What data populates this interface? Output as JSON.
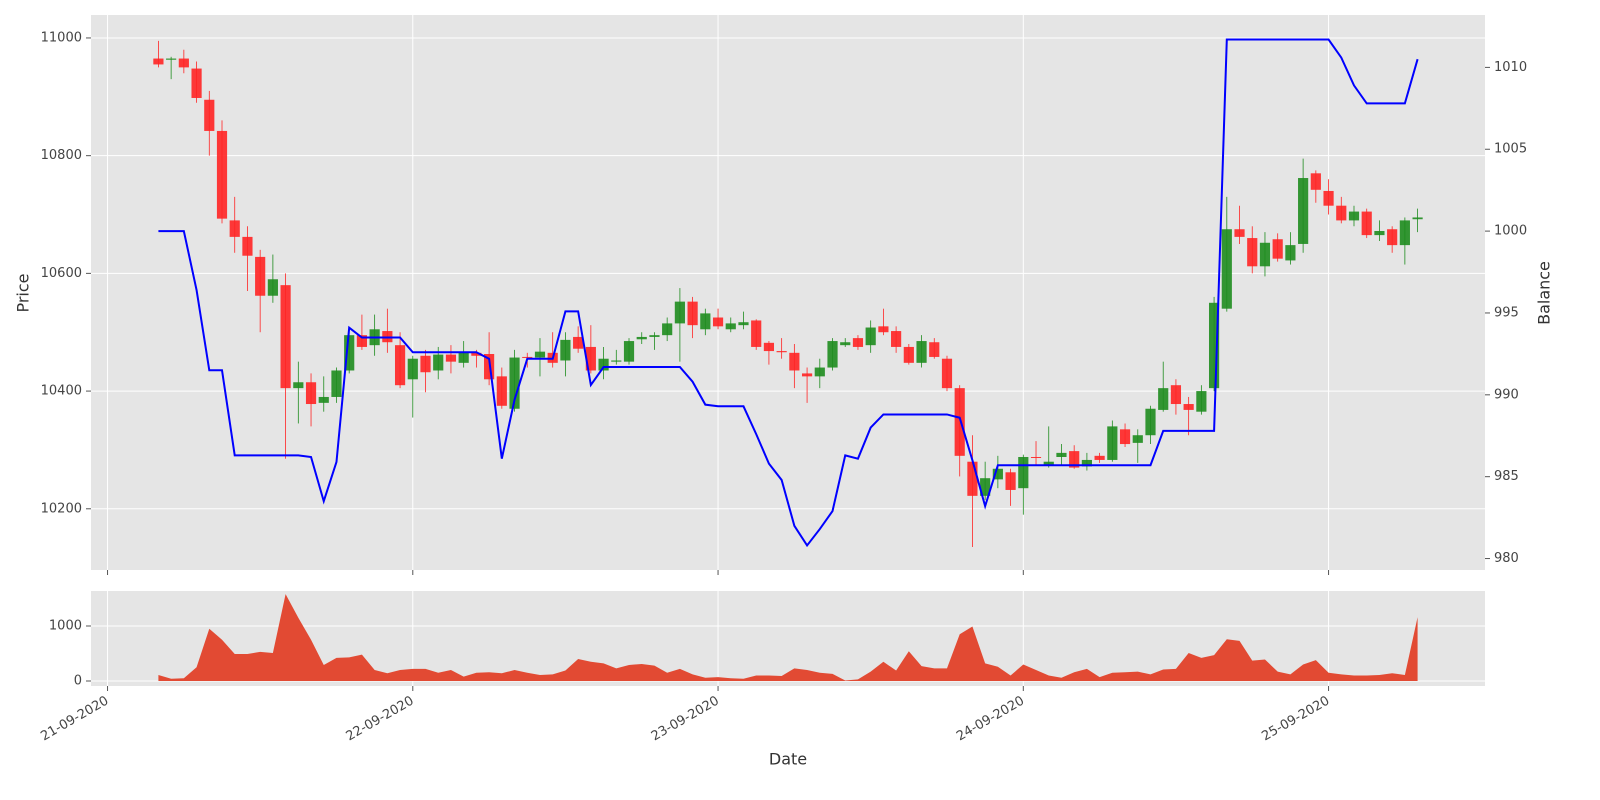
{
  "chart_data": [
    {
      "type": "candlestick",
      "ylabel": "Price",
      "y2label": "Balance",
      "x": [
        4,
        5,
        6,
        7,
        8,
        9,
        10,
        11,
        12,
        13,
        14,
        15,
        16,
        17,
        18,
        19,
        20,
        21,
        22,
        23,
        24,
        25,
        26,
        27,
        28,
        29,
        30,
        31,
        32,
        33,
        34,
        35,
        36,
        37,
        38,
        39,
        40,
        41,
        42,
        43,
        44,
        45,
        46,
        47,
        48,
        49,
        50,
        51,
        52,
        53,
        54,
        55,
        56,
        57,
        58,
        59,
        60,
        61,
        62,
        63,
        64,
        65,
        66,
        67,
        68,
        69,
        70,
        71,
        72,
        73,
        74,
        75,
        76,
        77,
        78,
        79,
        80,
        81,
        82,
        83,
        84,
        85,
        86,
        87,
        88,
        89,
        90,
        91,
        92,
        93,
        94,
        95,
        96,
        97,
        98,
        99,
        100,
        101,
        102,
        103
      ],
      "open": [
        10965,
        10963,
        10965,
        10948,
        10895,
        10842,
        10690,
        10662,
        10628,
        10562,
        10580,
        10405,
        10415,
        10380,
        10390,
        10435,
        10495,
        10478,
        10502,
        10478,
        10420,
        10460,
        10435,
        10462,
        10448,
        10465,
        10463,
        10425,
        10370,
        10458,
        10457,
        10465,
        10452,
        10492,
        10475,
        10435,
        10450,
        10450,
        10488,
        10492,
        10495,
        10515,
        10552,
        10505,
        10525,
        10505,
        10512,
        10520,
        10482,
        10468,
        10465,
        10430,
        10425,
        10440,
        10478,
        10490,
        10478,
        10510,
        10502,
        10475,
        10448,
        10483,
        10455,
        10405,
        10280,
        10222,
        10250,
        10262,
        10235,
        10288,
        10275,
        10288,
        10298,
        10272,
        10290,
        10283,
        10335,
        10312,
        10325,
        10368,
        10410,
        10378,
        10365,
        10405,
        10540,
        10675,
        10660,
        10612,
        10658,
        10622,
        10650,
        10770,
        10740,
        10715,
        10690,
        10705,
        10665,
        10675,
        10648,
        10692
      ],
      "high": [
        10995,
        10968,
        10980,
        10960,
        10910,
        10860,
        10730,
        10680,
        10640,
        10632,
        10600,
        10450,
        10430,
        10425,
        10440,
        10500,
        10530,
        10530,
        10540,
        10500,
        10460,
        10470,
        10475,
        10478,
        10485,
        10470,
        10500,
        10440,
        10470,
        10465,
        10490,
        10500,
        10500,
        10510,
        10512,
        10475,
        10470,
        10490,
        10500,
        10500,
        10525,
        10575,
        10560,
        10540,
        10540,
        10525,
        10535,
        10522,
        10485,
        10490,
        10480,
        10440,
        10455,
        10490,
        10490,
        10495,
        10520,
        10540,
        10510,
        10480,
        10495,
        10490,
        10460,
        10410,
        10325,
        10280,
        10290,
        10268,
        10292,
        10315,
        10340,
        10310,
        10308,
        10295,
        10295,
        10350,
        10345,
        10335,
        10375,
        10450,
        10420,
        10390,
        10410,
        10560,
        10730,
        10715,
        10680,
        10670,
        10668,
        10670,
        10795,
        10775,
        10760,
        10730,
        10715,
        10710,
        10690,
        10680,
        10695,
        10710
      ],
      "low": [
        10950,
        10930,
        10940,
        10890,
        10800,
        10685,
        10635,
        10570,
        10500,
        10550,
        10285,
        10345,
        10340,
        10365,
        10380,
        10430,
        10470,
        10460,
        10465,
        10405,
        10355,
        10398,
        10420,
        10430,
        10440,
        10440,
        10410,
        10370,
        10365,
        10440,
        10425,
        10440,
        10425,
        10465,
        10430,
        10420,
        10445,
        10445,
        10480,
        10470,
        10485,
        10450,
        10490,
        10495,
        10505,
        10500,
        10505,
        10470,
        10445,
        10455,
        10405,
        10380,
        10405,
        10435,
        10475,
        10470,
        10465,
        10495,
        10465,
        10445,
        10440,
        10455,
        10400,
        10255,
        10135,
        10215,
        10235,
        10205,
        10190,
        10275,
        10270,
        10275,
        10268,
        10265,
        10278,
        10280,
        10305,
        10278,
        10310,
        10365,
        10360,
        10325,
        10360,
        10400,
        10535,
        10650,
        10600,
        10595,
        10620,
        10615,
        10635,
        10720,
        10700,
        10685,
        10680,
        10660,
        10655,
        10635,
        10615,
        10670
      ],
      "close": [
        10955,
        10965,
        10950,
        10898,
        10842,
        10693,
        10662,
        10630,
        10562,
        10590,
        10405,
        10415,
        10378,
        10390,
        10435,
        10495,
        10475,
        10505,
        10483,
        10410,
        10455,
        10432,
        10462,
        10450,
        10465,
        10460,
        10420,
        10375,
        10457,
        10457,
        10467,
        10448,
        10487,
        10472,
        10435,
        10455,
        10452,
        10485,
        10492,
        10495,
        10515,
        10552,
        10512,
        10532,
        10510,
        10515,
        10517,
        10475,
        10468,
        10466,
        10435,
        10425,
        10440,
        10485,
        10483,
        10475,
        10508,
        10500,
        10475,
        10448,
        10485,
        10458,
        10405,
        10290,
        10222,
        10252,
        10268,
        10232,
        10288,
        10287,
        10280,
        10295,
        10270,
        10283,
        10283,
        10340,
        10310,
        10325,
        10370,
        10405,
        10378,
        10368,
        10400,
        10550,
        10675,
        10662,
        10612,
        10652,
        10625,
        10648,
        10762,
        10742,
        10715,
        10690,
        10705,
        10665,
        10672,
        10648,
        10690,
        10695
      ],
      "up_color": "#1e8c1e",
      "down_color": "#ff2424",
      "series": [
        {
          "axis": "y2",
          "color": "#0000ff",
          "values": [
            1000,
            1000,
            1000,
            996.4,
            991.5,
            991.5,
            986.3,
            986.3,
            986.3,
            986.3,
            986.3,
            986.3,
            986.2,
            983.5,
            985.9,
            994.1,
            993.5,
            993.5,
            993.5,
            993.5,
            992.6,
            992.6,
            992.6,
            992.6,
            992.6,
            992.6,
            992.2,
            986.1,
            989.7,
            992.2,
            992.2,
            992.2,
            995.1,
            995.1,
            990.6,
            991.7,
            991.7,
            991.7,
            991.7,
            991.7,
            991.7,
            991.7,
            990.8,
            989.4,
            989.3,
            989.3,
            989.3,
            987.6,
            985.8,
            984.8,
            982.0,
            980.8,
            981.8,
            982.9,
            986.3,
            986.1,
            988.0,
            988.8,
            988.8,
            988.8,
            988.8,
            988.8,
            988.8,
            988.6,
            986.0,
            983.2,
            985.7,
            985.7,
            985.7,
            985.7,
            985.7,
            985.7,
            985.7,
            985.7,
            985.7,
            985.7,
            985.7,
            985.7,
            985.7,
            987.8,
            987.8,
            987.8,
            987.8,
            987.8,
            1011.7,
            1011.7,
            1011.7,
            1011.7,
            1011.7,
            1011.7,
            1011.7,
            1011.7,
            1011.7,
            1010.6,
            1008.9,
            1007.8,
            1007.8,
            1007.8,
            1007.8,
            1010.5
          ]
        }
      ],
      "xlim": [
        -1.3,
        108.3
      ],
      "xticks": [
        0,
        24,
        48,
        72,
        96
      ],
      "ylim": [
        10096,
        11039
      ],
      "yticks": [
        10200,
        10400,
        10600,
        10800,
        11000
      ],
      "y2lim": [
        979.3,
        1013.2
      ],
      "y2ticks": [
        980,
        985,
        990,
        995,
        1000,
        1005,
        1010
      ],
      "grid": true
    },
    {
      "type": "area",
      "xlabel": "Date",
      "color": "#e24a33",
      "x": [
        4,
        5,
        6,
        7,
        8,
        9,
        10,
        11,
        12,
        13,
        14,
        15,
        16,
        17,
        18,
        19,
        20,
        21,
        22,
        23,
        24,
        25,
        26,
        27,
        28,
        29,
        30,
        31,
        32,
        33,
        34,
        35,
        36,
        37,
        38,
        39,
        40,
        41,
        42,
        43,
        44,
        45,
        46,
        47,
        48,
        49,
        50,
        51,
        52,
        53,
        54,
        55,
        56,
        57,
        58,
        59,
        60,
        61,
        62,
        63,
        64,
        65,
        66,
        67,
        68,
        69,
        70,
        71,
        72,
        73,
        74,
        75,
        76,
        77,
        78,
        79,
        80,
        81,
        82,
        83,
        84,
        85,
        86,
        87,
        88,
        89,
        90,
        91,
        92,
        93,
        94,
        95,
        96,
        97,
        98,
        99,
        100,
        101,
        102,
        103
      ],
      "values": [
        110,
        40,
        50,
        250,
        950,
        750,
        490,
        490,
        530,
        510,
        1580,
        1150,
        750,
        290,
        420,
        430,
        480,
        200,
        140,
        200,
        220,
        220,
        150,
        200,
        80,
        150,
        160,
        140,
        200,
        150,
        110,
        120,
        190,
        400,
        350,
        320,
        230,
        290,
        310,
        280,
        150,
        220,
        120,
        60,
        70,
        50,
        40,
        100,
        100,
        90,
        230,
        200,
        150,
        130,
        10,
        30,
        170,
        350,
        190,
        540,
        270,
        230,
        230,
        850,
        990,
        320,
        260,
        100,
        300,
        200,
        100,
        60,
        160,
        220,
        70,
        150,
        160,
        170,
        120,
        210,
        220,
        510,
        420,
        470,
        760,
        730,
        370,
        390,
        170,
        120,
        300,
        380,
        150,
        120,
        100,
        100,
        110,
        140,
        110,
        1160
      ],
      "xlim": [
        -1.3,
        108.3
      ],
      "xticks": [
        {
          "value": 0,
          "label": "21-09-2020"
        },
        {
          "value": 24,
          "label": "22-09-2020"
        },
        {
          "value": 48,
          "label": "23-09-2020"
        },
        {
          "value": 72,
          "label": "24-09-2020"
        },
        {
          "value": 96,
          "label": "25-09-2020"
        }
      ],
      "ylim": [
        -91,
        1636
      ],
      "yticks": [
        0,
        1000
      ],
      "grid": true
    }
  ]
}
